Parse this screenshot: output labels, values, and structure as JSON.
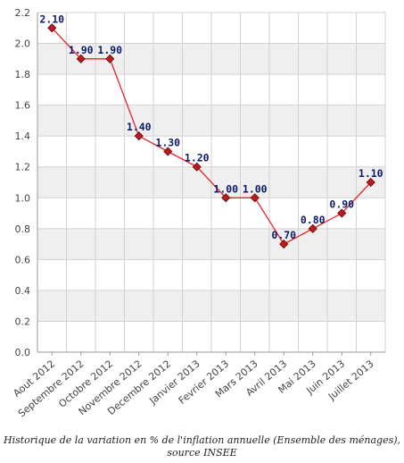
{
  "chart_data": {
    "type": "line",
    "title": "",
    "xlabel": "",
    "ylabel": "",
    "categories": [
      "Aout 2012",
      "Septembre 2012",
      "Octobre 2012",
      "Novembre 2012",
      "Decembre 2012",
      "Janvier 2013",
      "Fevrier 2013",
      "Mars 2013",
      "Avril 2013",
      "Mai 2013",
      "Juin 2013",
      "Juillet 2013"
    ],
    "values": [
      2.1,
      1.9,
      1.9,
      1.4,
      1.3,
      1.2,
      1.0,
      1.0,
      0.7,
      0.8,
      0.9,
      1.1
    ],
    "data_labels": [
      "2.10",
      "1.90",
      "1.90",
      "1.40",
      "1.30",
      "1.20",
      "1.00",
      "1.00",
      "0.70",
      "0.80",
      "0.90",
      "1.10"
    ],
    "ylim": [
      0,
      2.2
    ],
    "y_ticks": [
      "0.0",
      "0.2",
      "0.4",
      "0.6",
      "0.8",
      "1.0",
      "1.2",
      "1.4",
      "1.6",
      "1.8",
      "2.0",
      "2.2"
    ],
    "grid": true,
    "legend": "none",
    "colors": {
      "line": "#e8232a",
      "marker_fill": "#c0181e",
      "marker_stroke": "#5a0a0c",
      "band": "#efefef",
      "grid": "#d2d2d2",
      "label": "#0c1a6e"
    }
  },
  "caption": {
    "line1": "Historique de la variation en % de l'inflation annuelle (Ensemble des ménages),",
    "line2": "source INSEE"
  }
}
